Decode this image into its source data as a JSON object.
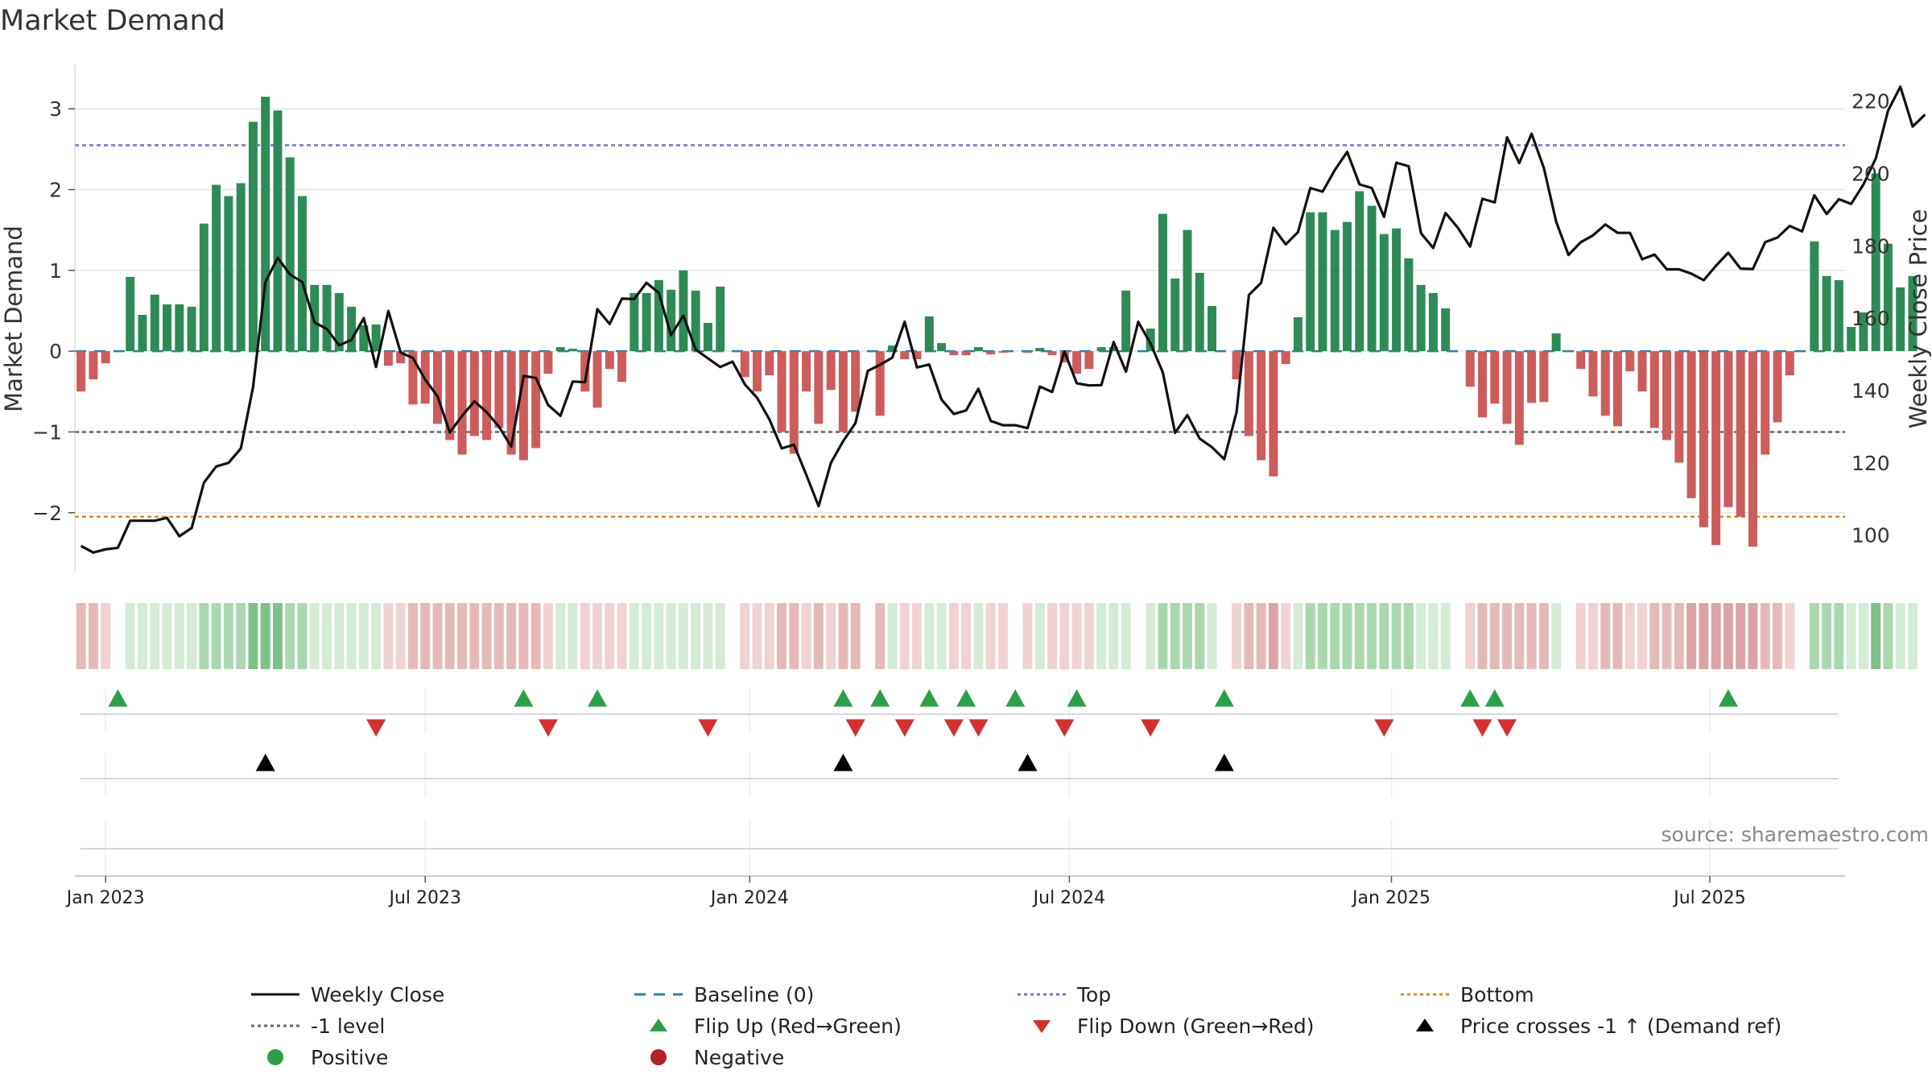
{
  "chart_data": {
    "type": "bar",
    "title": "Market Demand",
    "ylabel_left": "Market Demand",
    "ylabel_right": "Weekly Close Price",
    "source": "source: sharemaestro.com",
    "ylim_left": [
      -2.75,
      3.55
    ],
    "yticks_left": [
      -2,
      -1,
      0,
      1,
      2,
      3
    ],
    "ytick_labels_left": [
      "−2",
      "−1",
      "0",
      "1",
      "2",
      "3"
    ],
    "ylim_right": [
      89.46,
      230.17
    ],
    "yticks_right": [
      100,
      120,
      140,
      160,
      180,
      200,
      220
    ],
    "ytick_labels_right": [
      "100",
      "120",
      "140",
      "160",
      "180",
      "200",
      "220"
    ],
    "x_range_weeks": [
      -2.5,
      141.5
    ],
    "xticks": [
      {
        "label": "Jan 2023",
        "week": 0
      },
      {
        "label": "Jul 2023",
        "week": 26
      },
      {
        "label": "Jan 2024",
        "week": 52.4
      },
      {
        "label": "Jul 2024",
        "week": 78.4
      },
      {
        "label": "Jan 2025",
        "week": 104.6
      },
      {
        "label": "Jul 2025",
        "week": 130.5
      }
    ],
    "reference_lines": {
      "top": 2.55,
      "bottom": -2.05,
      "minus_one": -1,
      "baseline": 0
    },
    "demand_weekly_from_week_minus2": [
      -0.5,
      -0.35,
      -0.15,
      0,
      0.92,
      0.45,
      0.7,
      0.58,
      0.58,
      0.55,
      1.58,
      2.06,
      1.92,
      2.08,
      2.84,
      3.15,
      2.98,
      2.4,
      1.92,
      0.82,
      0.82,
      0.72,
      0.55,
      0.32,
      0.33,
      -0.18,
      -0.15,
      -0.66,
      -0.65,
      -0.9,
      -1.1,
      -1.28,
      -1.05,
      -1.1,
      -0.95,
      -1.28,
      -1.35,
      -1.2,
      -0.28,
      0.05,
      0.03,
      -0.5,
      -0.7,
      -0.22,
      -0.38,
      0.72,
      0.72,
      0.88,
      0.76,
      1.0,
      0.75,
      0.35,
      0.8,
      0,
      -0.32,
      -0.5,
      -0.3,
      -1.0,
      -1.27,
      -0.5,
      -0.9,
      -0.48,
      -1.0,
      -0.75,
      0,
      -0.8,
      0.07,
      -0.1,
      -0.1,
      0.43,
      0.1,
      -0.05,
      -0.05,
      0.05,
      -0.04,
      -0.02,
      0,
      -0.02,
      0.04,
      -0.05,
      -0.14,
      -0.28,
      -0.22,
      0.05,
      0.05,
      0.75,
      0,
      0.28,
      1.7,
      0.9,
      1.5,
      0.97,
      0.56,
      0,
      -0.35,
      -1.05,
      -1.35,
      -1.55,
      -0.16,
      0.42,
      1.72,
      1.72,
      1.5,
      1.6,
      1.98,
      1.8,
      1.45,
      1.52,
      1.15,
      0.82,
      0.72,
      0.53,
      0,
      -0.44,
      -0.82,
      -0.65,
      -0.9,
      -1.16,
      -0.64,
      -0.63,
      0.22,
      0,
      -0.22,
      -0.56,
      -0.8,
      -0.93,
      -0.25,
      -0.5,
      -0.95,
      -1.1,
      -1.38,
      -1.82,
      -2.18,
      -2.4,
      -1.93,
      -2.05,
      -2.42,
      -1.28,
      -0.88,
      -0.3,
      0,
      1.36,
      0.93,
      0.88,
      0.3,
      0.48,
      2.2,
      1.33,
      0.79,
      0.93
    ],
    "series": [
      {
        "name": "Weekly Close",
        "values_from_week_minus2": [
          97,
          95.2,
          96.1,
          96.5,
          104,
          104,
          104,
          104.8,
          99.7,
          102,
          114.5,
          119,
          120,
          124,
          141,
          170,
          176.7,
          172.1,
          170,
          158.8,
          157,
          152.5,
          154,
          160,
          146.5,
          162,
          150.5,
          149,
          143,
          138.4,
          128.4,
          133,
          137,
          134,
          130,
          124.5,
          144,
          143.5,
          136,
          133,
          142.5,
          142.3,
          162.5,
          158.4,
          165.4,
          165.3,
          169.8,
          167,
          155.3,
          160.7,
          151.3,
          148.9,
          146.5,
          148,
          141.7,
          138,
          132,
          124,
          125,
          116.7,
          108,
          120,
          126,
          131,
          145.4,
          147.1,
          149.1,
          159,
          146.4,
          147.2,
          137.5,
          133.5,
          134.5,
          140.5,
          131.6,
          130.4,
          130.4,
          129.6,
          141.1,
          139.6,
          150.8,
          142,
          141.4,
          141.5,
          153.4,
          145.2,
          159,
          153,
          145,
          128.3,
          133.2,
          126.7,
          124.3,
          121,
          134,
          166.4,
          169.8,
          185,
          180.4,
          183.8,
          196,
          195,
          201,
          206,
          197,
          196,
          188,
          203,
          202,
          183.5,
          179.4,
          189.1,
          185,
          179.8,
          193,
          192,
          210,
          202.9,
          211,
          201.5,
          186.7,
          177.5,
          181,
          182.9,
          185.9,
          183.6,
          183.6,
          176.3,
          177.6,
          173.5,
          173.5,
          172.3,
          170.5,
          174.5,
          178.1,
          173.7,
          173.6,
          181,
          182.3,
          185.5,
          184,
          194,
          188.8,
          192.9,
          191.6,
          197,
          204.2,
          217.4,
          224,
          213,
          216.3
        ]
      }
    ],
    "heat_strip_levels_from_week_minus2": [
      -2,
      -2,
      -1,
      0,
      1,
      1,
      1,
      1,
      1,
      1,
      2,
      2,
      2,
      2,
      3,
      3,
      3,
      2,
      2,
      1,
      1,
      1,
      1,
      1,
      1,
      -1,
      -1,
      -2,
      -2,
      -2,
      -2,
      -2,
      -2,
      -2,
      -2,
      -2,
      -2,
      -2,
      -1,
      1,
      1,
      -1,
      -1,
      -1,
      -1,
      1,
      1,
      1,
      1,
      1,
      1,
      1,
      1,
      0,
      -1,
      -1,
      -1,
      -2,
      -2,
      -1,
      -2,
      -1,
      -2,
      -2,
      0,
      -2,
      1,
      -1,
      -1,
      1,
      1,
      -1,
      -1,
      1,
      -1,
      -1,
      0,
      -1,
      1,
      -1,
      -1,
      -1,
      -1,
      1,
      1,
      1,
      0,
      1,
      2,
      2,
      2,
      2,
      1,
      0,
      -1,
      -2,
      -2,
      -3,
      -1,
      1,
      2,
      2,
      2,
      2,
      2,
      2,
      2,
      2,
      2,
      1,
      1,
      1,
      0,
      -1,
      -2,
      -2,
      -2,
      -2,
      -2,
      -2,
      1,
      0,
      -1,
      -1,
      -2,
      -2,
      -1,
      -1,
      -2,
      -2,
      -2,
      -3,
      -3,
      -3,
      -3,
      -3,
      -3,
      -2,
      -2,
      -1,
      0,
      2,
      2,
      2,
      1,
      1,
      3,
      2,
      1,
      1
    ],
    "flip_up_weeks": [
      1,
      34,
      40,
      60,
      63,
      67,
      70,
      74,
      79,
      91,
      111,
      113,
      132
    ],
    "flip_down_weeks": [
      22,
      36,
      49,
      61,
      65,
      69,
      71,
      78,
      85,
      104,
      112,
      114
    ],
    "price_cross_weeks": [
      13,
      60,
      75,
      91
    ]
  },
  "legend": [
    {
      "label": "Weekly Close",
      "symbol": "line-solid",
      "color": "#111111"
    },
    {
      "label": "Baseline (0)",
      "symbol": "line-dashed",
      "color": "#2c7fb8"
    },
    {
      "label": "Top",
      "symbol": "line-dotted",
      "color": "#7b6fd6"
    },
    {
      "label": "Bottom",
      "symbol": "line-dotted",
      "color": "#e08a1e"
    },
    {
      "label": "-1 level",
      "symbol": "line-dotted",
      "color": "#666666"
    },
    {
      "label": "Flip Up (Red→Green)",
      "symbol": "triangle-up",
      "color": "#2ca048"
    },
    {
      "label": "Flip Down (Green→Red)",
      "symbol": "triangle-down",
      "color": "#d62f2f"
    },
    {
      "label": "Price crosses -1 ↑ (Demand ref)",
      "symbol": "triangle-up",
      "color": "#000000"
    },
    {
      "label": "Positive",
      "symbol": "circle",
      "color": "#2ca048"
    },
    {
      "label": "Negative",
      "symbol": "circle",
      "color": "#b22222"
    }
  ],
  "colors": {
    "positive_bar": "#2e8b57",
    "negative_bar": "#cd5c5c",
    "grid": "#e6e6e6",
    "strip_pos": [
      "#d4ebd6",
      "#a9d8ae",
      "#7cc288",
      "#4aa85c"
    ],
    "strip_neg": [
      "#f0d2d2",
      "#e6b9b9",
      "#dba3a3",
      "#cf8e8e"
    ]
  }
}
